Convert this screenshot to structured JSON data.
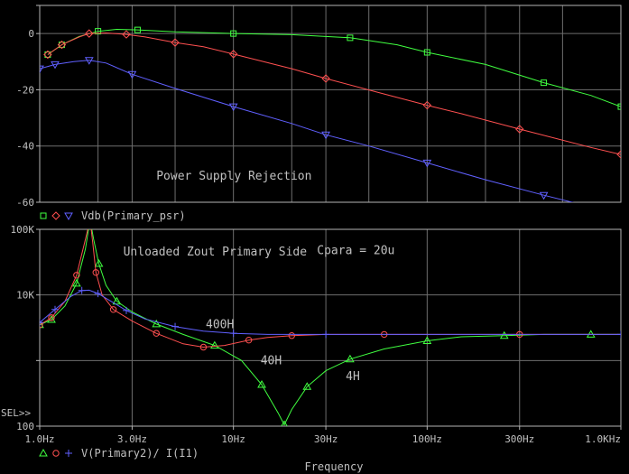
{
  "window": {
    "sel_marker": "SEL>>",
    "x_axis_label": "Frequency"
  },
  "chart_data": [
    {
      "type": "line",
      "x_scale": "log",
      "xlim": [
        1,
        1000
      ],
      "ylim": [
        -60,
        10
      ],
      "grid": true,
      "yticks": [
        {
          "value": 0,
          "label": "0"
        },
        {
          "value": -20,
          "label": "-20"
        },
        {
          "value": -40,
          "label": "-40"
        },
        {
          "value": -60,
          "label": "-60"
        }
      ],
      "annotations": [
        {
          "text": "Power Supply Rejection",
          "x": 4.0,
          "y": -52
        }
      ],
      "legend": {
        "placement": "bottom-left",
        "text": "Vdb(Primary_psr)"
      },
      "series": [
        {
          "color": "#40ff40",
          "marker": "square",
          "x": [
            1.1,
            1.3,
            1.6,
            2.0,
            2.5,
            3.2,
            5,
            10,
            20,
            40,
            70,
            100,
            200,
            400,
            700,
            1000
          ],
          "y": [
            -7.5,
            -4,
            -1,
            0.8,
            1.5,
            1.3,
            0.6,
            0,
            -0.4,
            -1.5,
            -4,
            -6.7,
            -11,
            -17.5,
            -22,
            -26
          ]
        },
        {
          "color": "#ff5050",
          "marker": "diamond",
          "x": [
            1.1,
            1.3,
            1.6,
            1.8,
            2.2,
            2.8,
            3.5,
            5,
            7,
            10,
            20,
            30,
            60,
            100,
            150,
            300,
            700,
            1000
          ],
          "y": [
            -7.5,
            -4,
            -1.2,
            0,
            0.2,
            -0.3,
            -1.2,
            -3.2,
            -4.7,
            -7.3,
            -12.5,
            -16,
            -21.5,
            -25.5,
            -28.5,
            -34,
            -40.5,
            -43
          ]
        },
        {
          "color": "#6060ff",
          "marker": "triangle-down",
          "x": [
            1.0,
            1.2,
            1.5,
            1.8,
            2.2,
            3.0,
            5,
            10,
            20,
            30,
            50,
            100,
            200,
            400,
            600,
            1000
          ],
          "y": [
            -12.5,
            -11,
            -10,
            -9.5,
            -10.5,
            -14.5,
            -19.5,
            -26,
            -32,
            -36,
            -40,
            -46,
            -52,
            -57.5,
            -60.5,
            -64
          ]
        }
      ]
    },
    {
      "type": "line",
      "x_scale": "log",
      "y_scale": "log",
      "xlim": [
        1,
        1000
      ],
      "ylim": [
        100,
        100000
      ],
      "grid": true,
      "yticks": [
        {
          "value": 100000,
          "label": "100K"
        },
        {
          "value": 10000,
          "label": "10K"
        },
        {
          "value": 100,
          "label": "100"
        }
      ],
      "xticks": [
        {
          "value": 1,
          "label": "1.0Hz"
        },
        {
          "value": 3,
          "label": "3.0Hz"
        },
        {
          "value": 10,
          "label": "10Hz"
        },
        {
          "value": 30,
          "label": "30Hz"
        },
        {
          "value": 100,
          "label": "100Hz"
        },
        {
          "value": 300,
          "label": "300Hz"
        },
        {
          "value": 1000,
          "label": "1.0KHz"
        }
      ],
      "annotations": [
        {
          "text": "Unloaded Zout Primary Side",
          "x": 2.7,
          "y": 40000
        },
        {
          "text": "Cpara = 20u",
          "x": 27,
          "y": 42000
        },
        {
          "text": "400H",
          "x": 7.2,
          "y": 3100
        },
        {
          "text": "40H",
          "x": 13.8,
          "y": 880
        },
        {
          "text": "4H",
          "x": 38,
          "y": 500
        }
      ],
      "legend": {
        "placement": "bottom-left",
        "text": "V(Primary2)/ I(I1)"
      },
      "series": [
        {
          "name": "4H",
          "color": "#40ff40",
          "marker": "triangle",
          "x": [
            1.0,
            1.15,
            1.35,
            1.55,
            1.72,
            1.82,
            1.9,
            2.02,
            2.2,
            2.5,
            3.0,
            4.0,
            5.5,
            8,
            11,
            14,
            17,
            18.3,
            20,
            24,
            30,
            40,
            60,
            100,
            150,
            250,
            400,
            700,
            1000
          ],
          "y": [
            3500,
            4200,
            6800,
            15000,
            50000,
            140000,
            70000,
            30000,
            14000,
            8000,
            5500,
            3600,
            2500,
            1700,
            1000,
            430,
            160,
            105,
            180,
            400,
            700,
            1050,
            1500,
            2000,
            2300,
            2400,
            2500,
            2500,
            2500
          ]
        },
        {
          "name": "40H",
          "color": "#ff5050",
          "marker": "circle",
          "x": [
            1.0,
            1.15,
            1.35,
            1.55,
            1.72,
            1.82,
            1.88,
            1.95,
            2.1,
            2.4,
            3.0,
            4.0,
            5.5,
            7,
            9,
            12,
            15,
            20,
            30,
            60,
            100,
            300,
            1000
          ],
          "y": [
            3500,
            4500,
            8000,
            20000,
            70000,
            140000,
            60000,
            22000,
            10000,
            6000,
            4000,
            2600,
            1800,
            1600,
            1700,
            2050,
            2250,
            2400,
            2500,
            2500,
            2500,
            2500,
            2500
          ]
        },
        {
          "name": "400H",
          "color": "#6060ff",
          "marker": "plus",
          "x": [
            1.0,
            1.2,
            1.45,
            1.65,
            1.8,
            2.0,
            2.3,
            2.8,
            3.5,
            5,
            7,
            10,
            15,
            30,
            100,
            1000
          ],
          "y": [
            3800,
            6000,
            9500,
            11700,
            11800,
            10500,
            8200,
            5800,
            4300,
            3300,
            2800,
            2600,
            2500,
            2500,
            2500,
            2500
          ]
        }
      ]
    }
  ]
}
